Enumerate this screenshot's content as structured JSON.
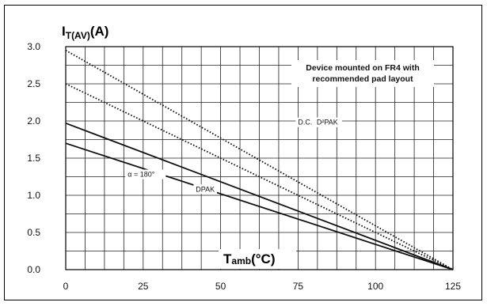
{
  "chart_data": {
    "type": "line",
    "ylabel": {
      "main": "I",
      "sub": "T(AV)",
      "unit": "(A)"
    },
    "xlabel": {
      "main": "T",
      "sub": "amb",
      "unit": "(°C)"
    },
    "xlim": [
      0,
      125
    ],
    "ylim": [
      0.0,
      3.0
    ],
    "xticks": [
      "0",
      "25",
      "50",
      "75",
      "100",
      "125"
    ],
    "yticks": [
      "0.0",
      "0.5",
      "1.0",
      "1.5",
      "2.0",
      "2.5",
      "3.0"
    ],
    "x_minor_step": 6.25,
    "y_minor_step": 0.25,
    "grid": true,
    "annotation": [
      "Device mounted on FR4 with",
      "recommended pad layout"
    ],
    "series": [
      {
        "name": "D.C.",
        "style": "dotted",
        "x": [
          0,
          125
        ],
        "y": [
          2.95,
          0.0
        ]
      },
      {
        "name": "D²PAK",
        "style": "dotted",
        "x": [
          0,
          125
        ],
        "y": [
          2.5,
          0.0
        ]
      },
      {
        "name": "",
        "style": "solid",
        "x": [
          0,
          125
        ],
        "y": [
          1.97,
          0.0
        ]
      },
      {
        "name": "DPAK",
        "style": "solid",
        "x": [
          0,
          125
        ],
        "y": [
          1.7,
          0.0
        ]
      }
    ],
    "labels": [
      {
        "text": "D.C.",
        "x": 75,
        "y": 1.95
      },
      {
        "text": "D²PAK",
        "x": 81,
        "y": 1.95
      },
      {
        "text": "α = 180°",
        "x": 20,
        "y": 1.25
      },
      {
        "text": "DPAK",
        "x": 42,
        "y": 1.05
      }
    ]
  }
}
